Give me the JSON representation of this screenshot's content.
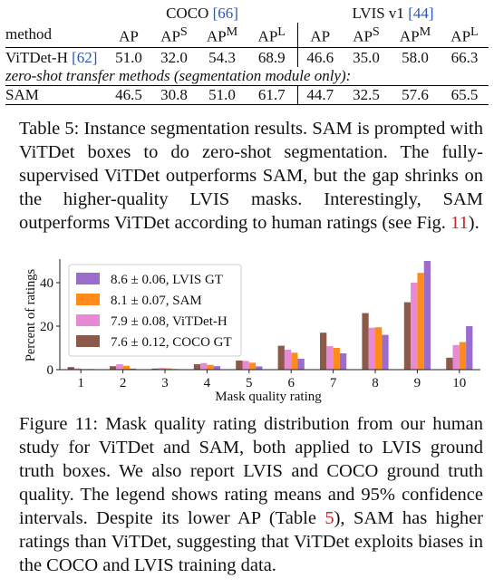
{
  "table": {
    "group_headers": [
      {
        "name": "COCO",
        "ref": "[66]"
      },
      {
        "name": "LVIS v1",
        "ref": "[44]"
      }
    ],
    "method_header": "method",
    "metric_headers": [
      {
        "base": "AP",
        "sup": ""
      },
      {
        "base": "AP",
        "sup": "S"
      },
      {
        "base": "AP",
        "sup": "M"
      },
      {
        "base": "AP",
        "sup": "L"
      }
    ],
    "vitdet": {
      "name": "ViTDet-H",
      "ref": "[62]",
      "values": [
        "51.0",
        "32.0",
        "54.3",
        "68.9",
        "46.6",
        "35.0",
        "58.0",
        "66.3"
      ]
    },
    "zero_shot_note": "zero-shot transfer methods (segmentation module only):",
    "sam": {
      "name": "SAM",
      "values": [
        "46.5",
        "30.8",
        "51.0",
        "61.7",
        "44.7",
        "32.5",
        "57.6",
        "65.5"
      ]
    }
  },
  "table_caption": {
    "label": "Table 5:",
    "text": "Instance segmentation results. SAM is prompted with ViTDet boxes to do zero-shot segmentation. The fully-supervised ViTDet outperforms SAM, but the gap shrinks on the higher-quality LVIS masks. Interestingly, SAM outperforms ViTDet according to human ratings (see Fig. ",
    "fig_ref": "11",
    "text_end": ")."
  },
  "figure_caption": {
    "label": "Figure 11:",
    "text": "Mask quality rating distribution from our human study for ViTDet and SAM, both applied to LVIS ground truth boxes. We also report LVIS and COCO ground truth quality. The legend shows rating means and 95% confidence intervals. Despite its lower AP (Table ",
    "table_ref": "5",
    "text_end": "), SAM has higher ratings than ViTDet, suggesting that ViTDet exploits biases in the COCO and LVIS training data."
  },
  "chart_data": {
    "type": "bar",
    "xlabel": "Mask quality rating",
    "ylabel": "Percent of ratings",
    "categories": [
      "1",
      "2",
      "3",
      "4",
      "5",
      "6",
      "7",
      "8",
      "9",
      "10"
    ],
    "yticks": [
      0,
      20,
      40
    ],
    "ylim": [
      0,
      50
    ],
    "legend_position": "top-left",
    "series": [
      {
        "name": "7.6 ± 0.12, COCO GT",
        "color": "#8b5a4a",
        "values": [
          1.2,
          1.6,
          0.5,
          2.5,
          4.2,
          11.0,
          17.0,
          26.0,
          31.0,
          5.5
        ]
      },
      {
        "name": "7.9 ± 0.08, ViTDet-H",
        "color": "#e78ad3",
        "values": [
          0.6,
          2.5,
          0.8,
          3.0,
          4.0,
          9.2,
          10.8,
          19.3,
          40.0,
          11.3
        ]
      },
      {
        "name": "8.1 ± 0.07, SAM",
        "color": "#ff8c1a",
        "values": [
          0.3,
          1.8,
          0.6,
          2.2,
          3.2,
          7.8,
          10.0,
          19.5,
          44.5,
          12.7
        ]
      },
      {
        "name": "8.6 ± 0.06, LVIS GT",
        "color": "#9b6ccc",
        "values": [
          0.3,
          0.5,
          0.3,
          1.6,
          1.5,
          5.0,
          7.5,
          16.0,
          50.0,
          20.0
        ]
      }
    ]
  }
}
